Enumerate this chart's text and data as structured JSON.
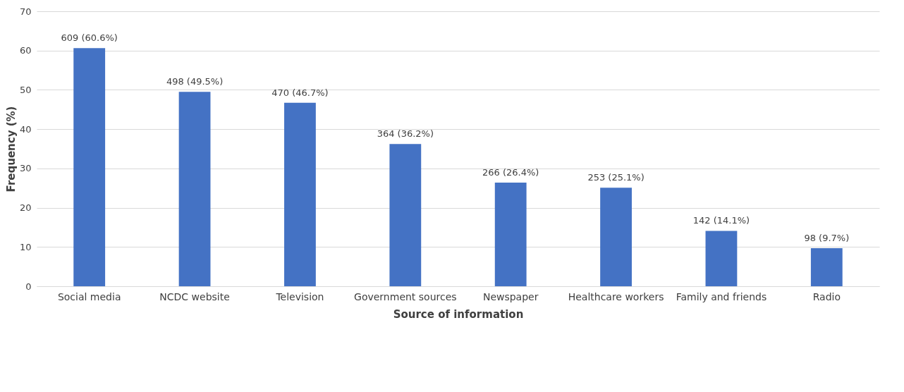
{
  "chart_data": {
    "type": "bar",
    "xlabel": "Source of information",
    "ylabel": "Frequency (%)",
    "categories": [
      "Social media",
      "NCDC website",
      "Television",
      "Government sources",
      "Newspaper",
      "Healthcare workers",
      "Family and friends",
      "Radio"
    ],
    "values": [
      60.6,
      49.5,
      46.7,
      36.2,
      26.4,
      25.1,
      14.1,
      9.7
    ],
    "value_labels": [
      "609 (60.6%)",
      "498 (49.5%)",
      "470 (46.7%)",
      "364 (36.2%)",
      "266 (26.4%)",
      "253 (25.1%)",
      "142 (14.1%)",
      "98 (9.7%)"
    ],
    "color": "#4472c4",
    "ylim": [
      0,
      70
    ],
    "yticks": [
      0,
      10,
      20,
      30,
      40,
      50,
      60,
      70
    ],
    "grid": "y"
  }
}
